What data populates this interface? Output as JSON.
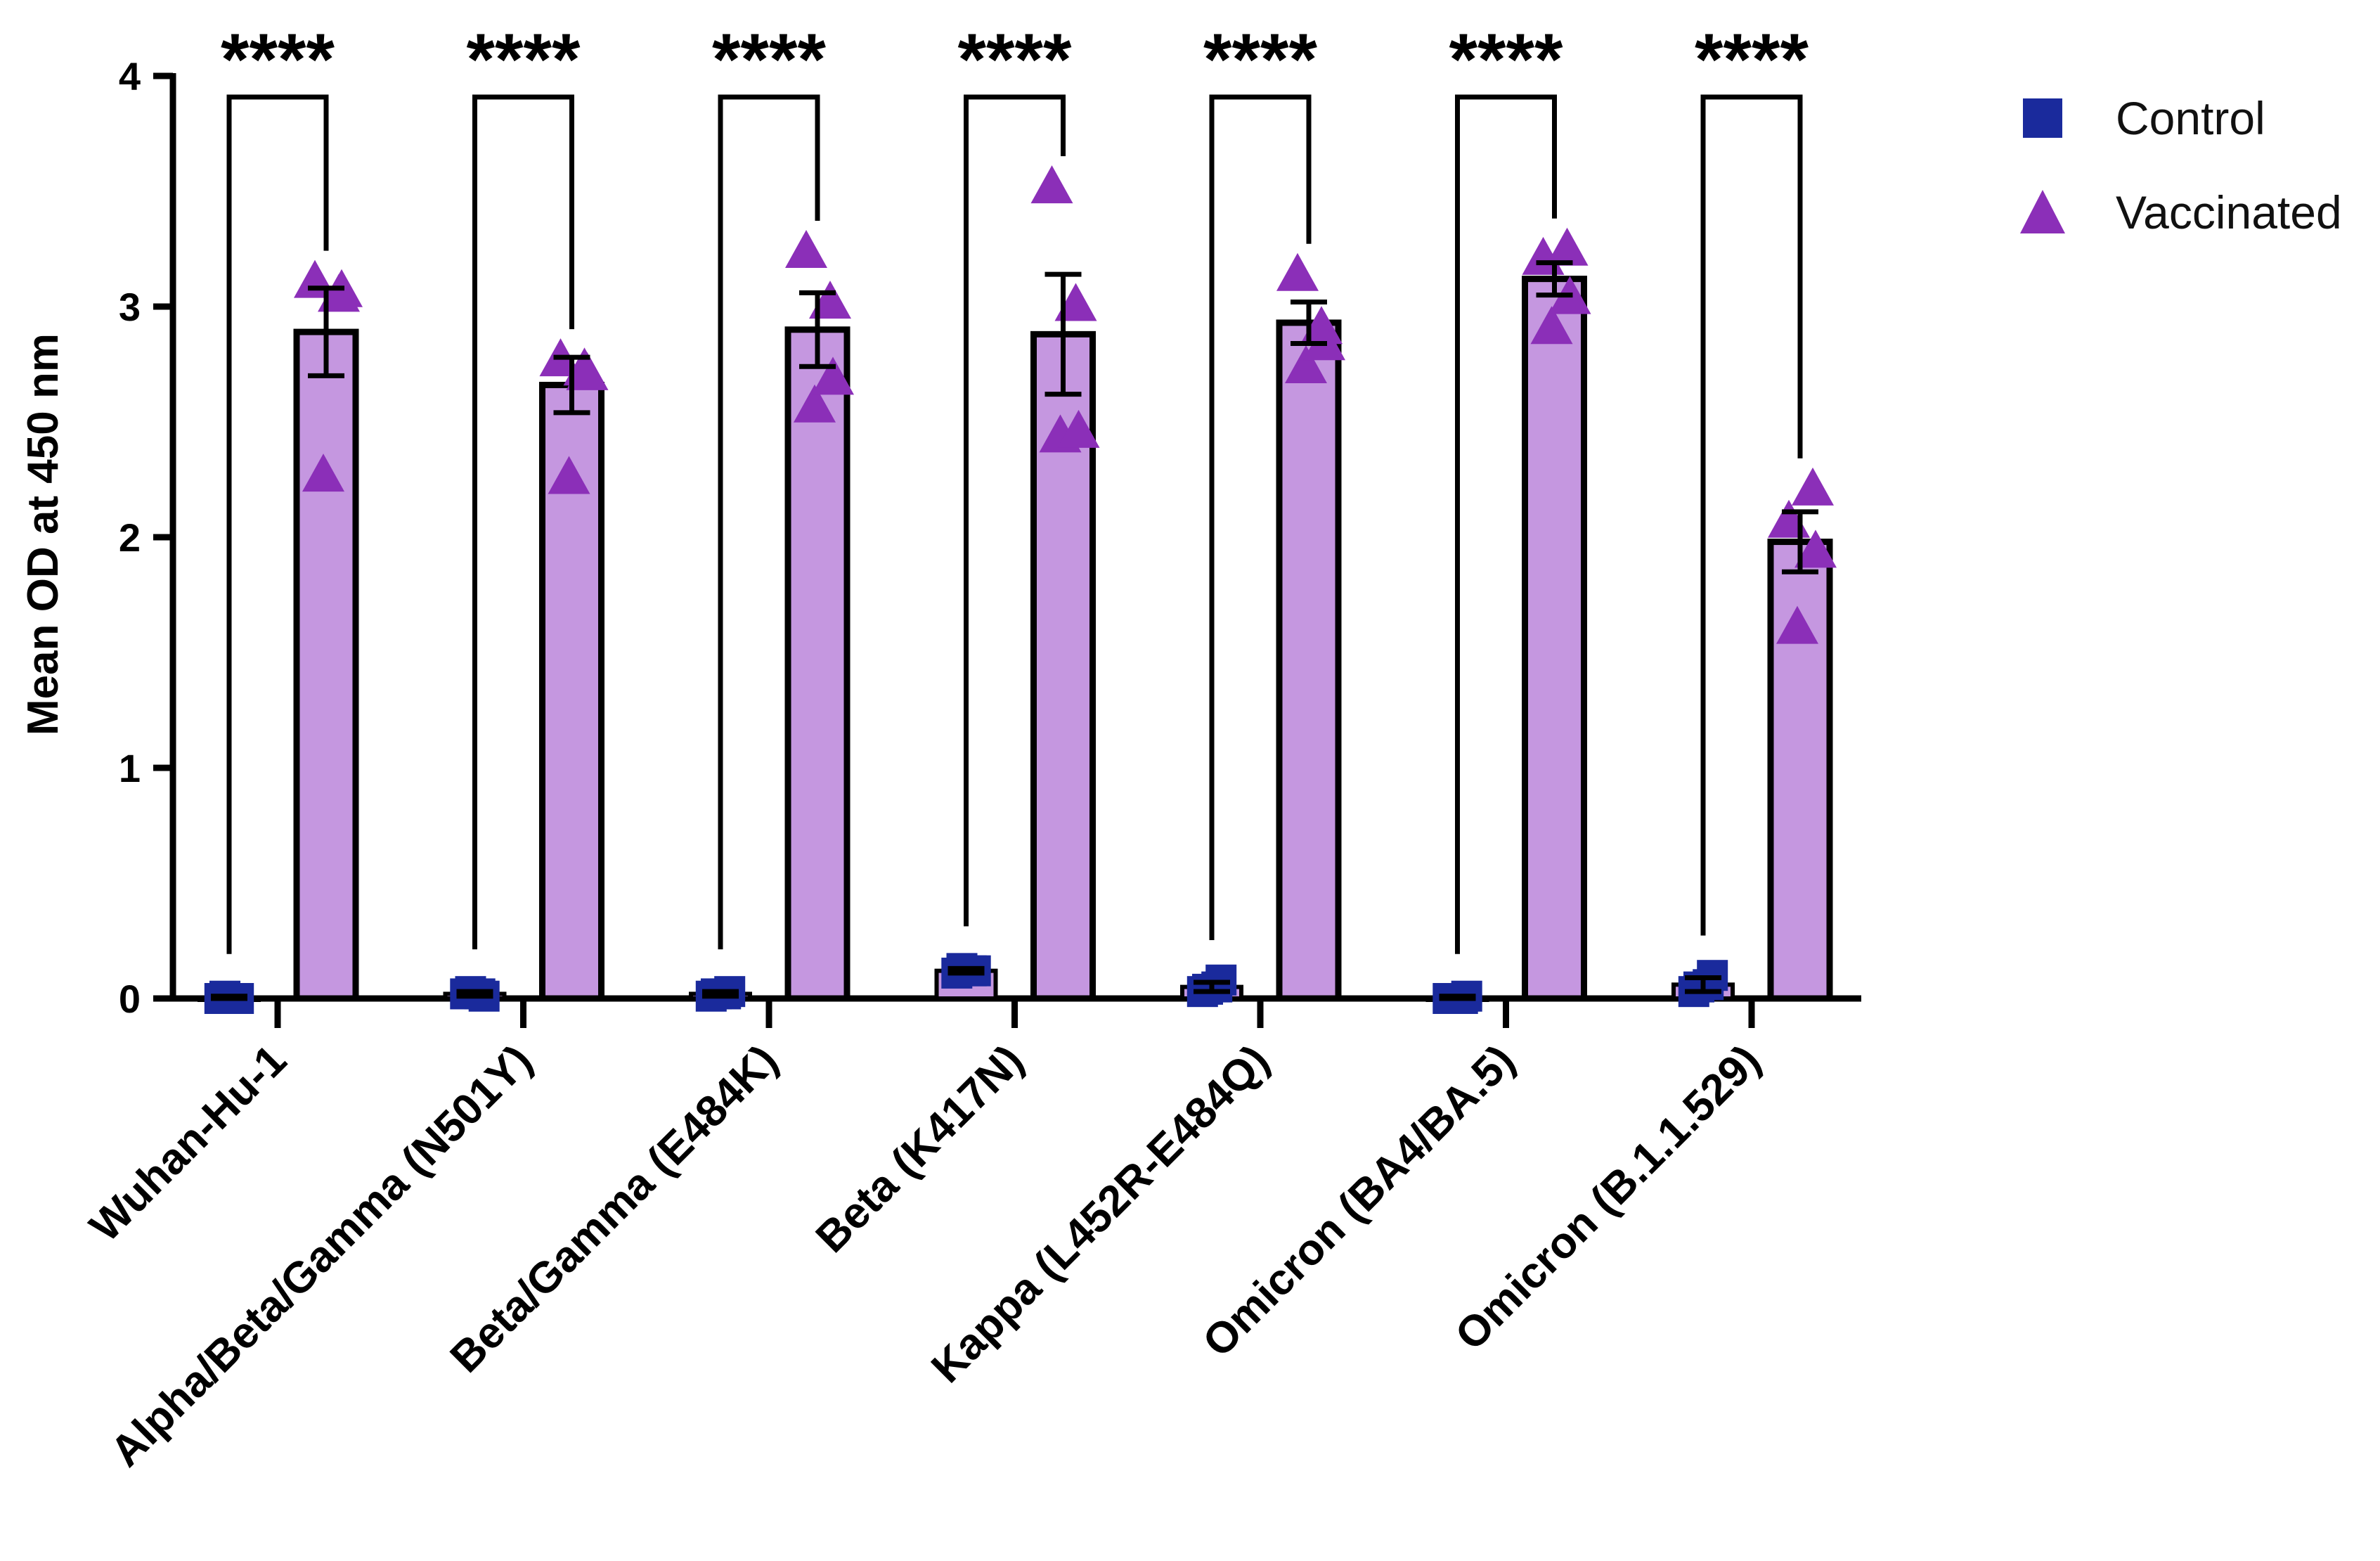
{
  "chart_data": {
    "type": "bar",
    "ylabel": "Mean OD at 450 nm",
    "xlabel": "",
    "ylim": [
      0,
      4
    ],
    "yticks": [
      "0",
      "1",
      "2",
      "3",
      "4"
    ],
    "categories": [
      "Wuhan-Hu-1",
      "Alpha/Beta/Gamma (N501Y)",
      "Beta/Gamma (E484K)",
      "Beta (K417N)",
      "Kappa (L452R-E484Q)",
      "Omicron (BA4/BA.5)",
      "Omicron (B.1.1.529)"
    ],
    "series": [
      {
        "name": "Control",
        "color": "#1a2a9c",
        "marker": "square",
        "values": [
          0.0,
          0.02,
          0.02,
          0.12,
          0.05,
          0.0,
          0.06
        ],
        "sem": [
          0.01,
          0.01,
          0.01,
          0.01,
          0.02,
          0.01,
          0.03
        ],
        "points": [
          [
            0.0,
            0.0,
            0.01,
            0.0
          ],
          [
            0.02,
            0.01,
            0.03,
            0.02
          ],
          [
            0.01,
            0.03,
            0.02,
            0.02
          ],
          [
            0.11,
            0.12,
            0.13,
            0.12
          ],
          [
            0.03,
            0.08,
            0.04,
            0.05
          ],
          [
            0.0,
            0.01,
            0.0,
            0.0
          ],
          [
            0.03,
            0.1,
            0.05,
            0.06
          ]
        ]
      },
      {
        "name": "Vaccinated",
        "color": "#8b2fb8",
        "bar_color": "#c597e0",
        "marker": "triangle",
        "values": [
          2.89,
          2.66,
          2.9,
          2.88,
          2.93,
          3.12,
          1.98
        ],
        "sem": [
          0.19,
          0.12,
          0.16,
          0.26,
          0.09,
          0.07,
          0.13
        ],
        "points": [
          [
            3.12,
            3.06,
            2.28,
            3.08
          ],
          [
            2.78,
            2.74,
            2.27,
            2.72
          ],
          [
            3.25,
            3.03,
            2.58,
            2.7
          ],
          [
            3.53,
            3.02,
            2.45,
            2.47
          ],
          [
            3.15,
            2.92,
            2.75,
            2.85
          ],
          [
            3.22,
            3.26,
            2.92,
            3.05
          ],
          [
            2.08,
            2.22,
            1.62,
            1.95
          ]
        ]
      }
    ],
    "significance": [
      "****",
      "****",
      "****",
      "****",
      "****",
      "****",
      "****"
    ],
    "legend": {
      "position": "top-right",
      "items": [
        {
          "label": "Control",
          "marker": "square",
          "color": "#1a2a9c"
        },
        {
          "label": "Vaccinated",
          "marker": "triangle",
          "color": "#8b2fb8"
        }
      ]
    },
    "grid": false
  }
}
